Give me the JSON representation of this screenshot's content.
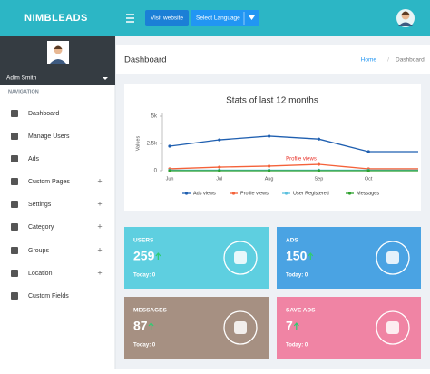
{
  "header": {
    "brand": "NIMBLEADS",
    "visit_button": "Visit website",
    "language_button": "Select Language"
  },
  "sidebar": {
    "user_name": "Adim Smith",
    "section": "NAVIGATION",
    "menu": [
      "Dashboard",
      "Manage Users",
      "Ads",
      "Custom Pages",
      "Settings",
      "Category",
      "Groups",
      "Location",
      "Custom Fields"
    ]
  },
  "page": {
    "title": "Dashboard",
    "breadcrumb": [
      "Home",
      "Dashboard"
    ]
  },
  "cards": [
    {
      "title": "USERS",
      "value": 259,
      "today": "Today: 0"
    },
    {
      "title": "ADS",
      "value": 150,
      "today": "Today: 0"
    },
    {
      "title": "MESSAGES",
      "value": 87,
      "today": "Today: 0"
    },
    {
      "title": "SAVE ADS",
      "value": 7,
      "today": "Today: 0"
    }
  ],
  "chart_data": {
    "type": "line",
    "title": "Stats of last 12 months",
    "y_label": "Values",
    "categories": [
      "Jun",
      "Jul",
      "Aug",
      "Sep",
      "Oct",
      null
    ],
    "series": [
      {
        "name": "Ads views",
        "color": "#1f5fb0",
        "values": [
          2250,
          2830,
          3170,
          2900,
          1750,
          1750
        ]
      },
      {
        "name": "Profile views",
        "color": "#f4623a",
        "values": [
          170,
          330,
          420,
          580,
          170,
          170
        ]
      },
      {
        "name": "User Registered",
        "color": "#5bc0de",
        "values": [
          50,
          50,
          50,
          50,
          50,
          50
        ]
      },
      {
        "name": "Messages",
        "color": "#2ca02c",
        "values": [
          0,
          0,
          0,
          0,
          0,
          0
        ]
      }
    ],
    "annotation": "Profile views",
    "ylim": [
      0,
      5000
    ],
    "yticks": [
      0,
      {
        "value": 2500,
        "label": "2.5k"
      },
      {
        "value": 5000,
        "label": "5k"
      }
    ],
    "grid": false
  }
}
